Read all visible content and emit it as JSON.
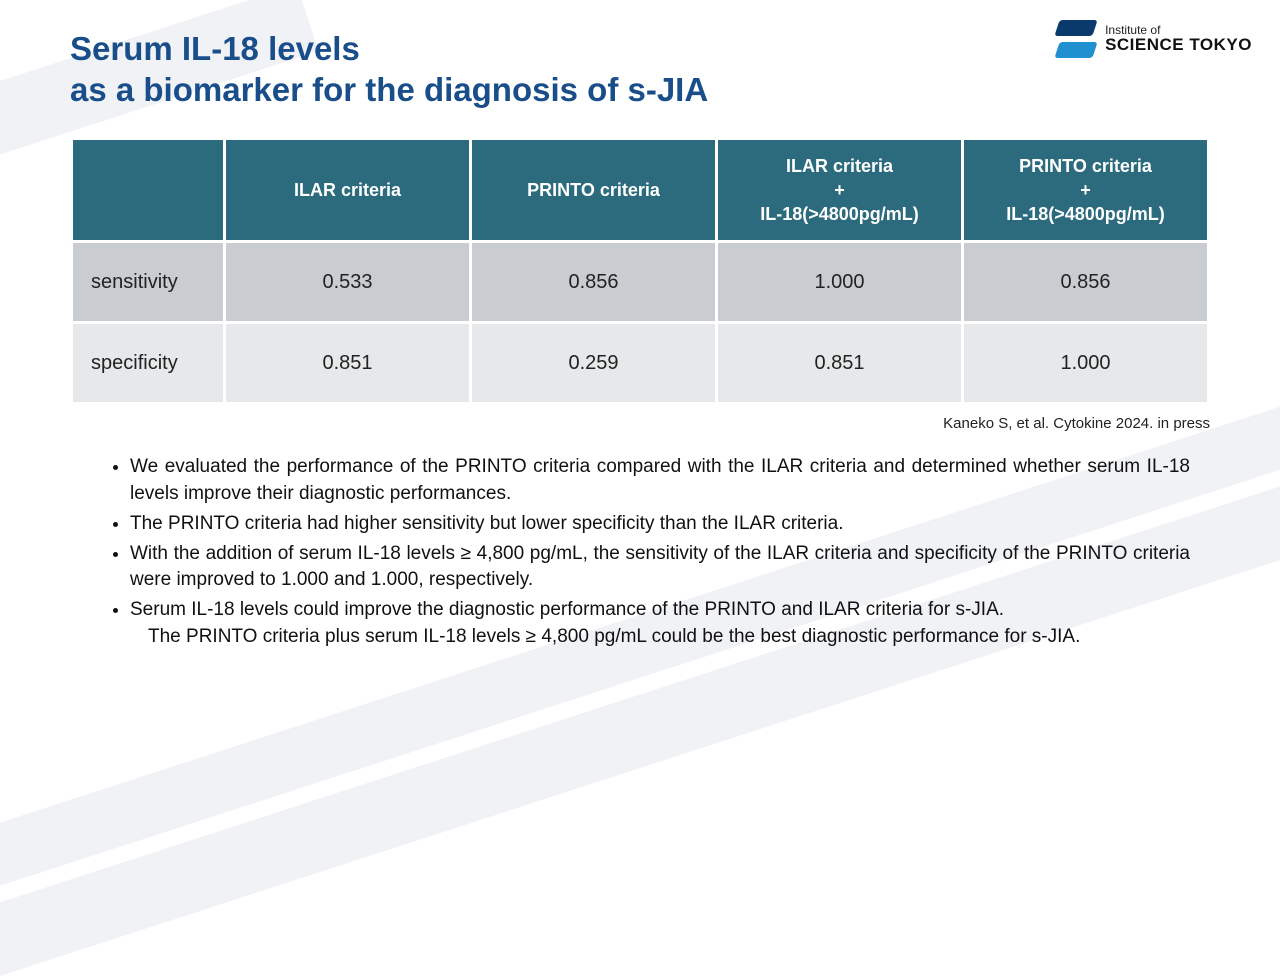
{
  "title_line1": "Serum IL-18 levels",
  "title_line2": "as a biomarker for the diagnosis of s-JIA",
  "logo": {
    "small": "Institute of",
    "big": "SCIENCE TOKYO"
  },
  "table": {
    "header_color": "#2b6b7d",
    "header_text_color": "#ffffff",
    "row_colors": [
      "#c9cdd1",
      "#e6e8ea"
    ],
    "columns": [
      "",
      "ILAR criteria",
      "PRINTO criteria",
      "ILAR criteria\n+\nIL-18(>4800pg/mL)",
      "PRINTO criteria\n+\nIL-18(>4800pg/mL)"
    ],
    "rows": [
      {
        "label": "sensitivity",
        "values": [
          "0.533",
          "0.856",
          "1.000",
          "0.856"
        ]
      },
      {
        "label": "specificity",
        "values": [
          "0.851",
          "0.259",
          "0.851",
          "1.000"
        ]
      }
    ]
  },
  "citation": "Kaneko S, et al. Cytokine 2024. in press",
  "bullets": [
    "We evaluated the performance of the PRINTO criteria compared with the ILAR criteria and determined whether serum IL-18 levels improve their diagnostic performances.",
    "The PRINTO criteria had higher sensitivity but lower specificity than the ILAR criteria.",
    "With the addition of serum IL-18 levels ≥ 4,800 pg/mL, the sensitivity of the ILAR criteria and specificity of the PRINTO criteria were improved to 1.000 and 1.000, respectively.",
    "Serum IL-18 levels could improve the diagnostic performance of the PRINTO and ILAR criteria for s-JIA."
  ],
  "bullet_tail": "The PRINTO criteria plus serum IL-18 levels ≥ 4,800 pg/mL could be the best diagnostic performance for s-JIA.",
  "colors": {
    "title": "#1a4e8a",
    "background": "#ffffff",
    "stripe": "#f0f2f5"
  }
}
